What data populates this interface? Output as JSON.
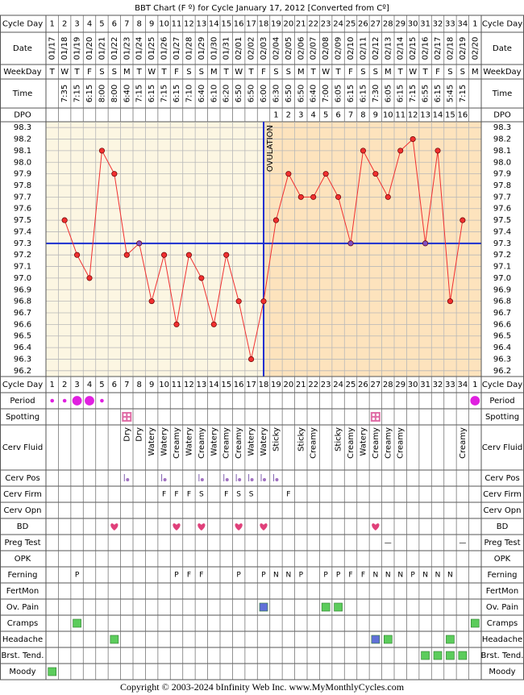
{
  "header": {
    "title": "BBT Chart (F º) for Cycle January 17, 2012  [Converted from Cº]"
  },
  "chart_data": {
    "type": "line",
    "categories": [
      1,
      2,
      3,
      4,
      5,
      6,
      7,
      8,
      9,
      10,
      11,
      12,
      13,
      14,
      15,
      16,
      17,
      18,
      19,
      20,
      21,
      22,
      23,
      24,
      25,
      26,
      27,
      28,
      29,
      30,
      31,
      32,
      33,
      34,
      1
    ],
    "dates": [
      "01/17",
      "01/18",
      "01/19",
      "01/20",
      "01/21",
      "01/22",
      "01/23",
      "01/24",
      "01/25",
      "01/26",
      "01/27",
      "01/28",
      "01/29",
      "01/30",
      "01/31",
      "02/01",
      "02/02",
      "02/03",
      "02/04",
      "02/05",
      "02/06",
      "02/07",
      "02/08",
      "02/09",
      "02/10",
      "02/11",
      "02/12",
      "02/13",
      "02/14",
      "02/15",
      "02/16",
      "02/17",
      "02/18",
      "02/19",
      "02/20"
    ],
    "weekdays": [
      "T",
      "W",
      "T",
      "F",
      "S",
      "S",
      "M",
      "T",
      "W",
      "T",
      "F",
      "S",
      "S",
      "M",
      "T",
      "W",
      "T",
      "F",
      "S",
      "S",
      "M",
      "T",
      "W",
      "T",
      "F",
      "S",
      "S",
      "M",
      "T",
      "W",
      "T",
      "F",
      "S",
      "S",
      "M"
    ],
    "times": [
      null,
      "7:35",
      "7:15",
      "6:15",
      "8:00",
      "8:00",
      "6:40",
      "7:15",
      "6:15",
      "7:15",
      "6:15",
      "7:10",
      "6:40",
      "6:10",
      "6:20",
      "6:50",
      "6:50",
      "6:00",
      "6:30",
      "6:50",
      "6:50",
      "6:40",
      "7:00",
      "6:05",
      "6:15",
      "6:15",
      "7:30",
      "6:05",
      "6:15",
      "7:15",
      "6:55",
      "6:15",
      "5:45",
      "7:15",
      null
    ],
    "dpo": [
      null,
      null,
      null,
      null,
      null,
      null,
      null,
      null,
      null,
      null,
      null,
      null,
      null,
      null,
      null,
      null,
      null,
      null,
      1,
      2,
      3,
      4,
      5,
      6,
      7,
      8,
      9,
      10,
      11,
      12,
      13,
      14,
      15,
      16,
      null
    ],
    "labels": {
      "cycle_day": "Cycle Day",
      "date": "Date",
      "weekday": "WeekDay",
      "time": "Time",
      "dpo": "DPO"
    },
    "series": [
      {
        "color": "#f03030",
        "values": [
          null,
          97.5,
          97.2,
          97.0,
          98.1,
          97.9,
          97.2,
          97.3,
          96.8,
          97.2,
          96.6,
          97.2,
          97.0,
          96.6,
          97.2,
          96.8,
          96.3,
          96.8,
          97.5,
          97.9,
          97.7,
          97.7,
          97.9,
          97.7,
          97.3,
          98.1,
          97.9,
          97.7,
          98.1,
          98.2,
          97.3,
          98.1,
          96.8,
          97.5,
          null
        ]
      }
    ],
    "ylim": [
      96.15,
      98.35
    ],
    "yticks": [
      98.3,
      98.2,
      98.1,
      {
        "value": 98,
        "label": "98.0"
      },
      97.9,
      97.8,
      97.7,
      97.6,
      97.5,
      97.4,
      97.3,
      97.2,
      97.1,
      {
        "value": 97,
        "label": "97.0"
      },
      96.9,
      96.8,
      96.7,
      96.6,
      96.5,
      96.4,
      96.3,
      96.2
    ],
    "grid": true,
    "coverline": 97.3,
    "coverline_color": "#1a2fd0",
    "ovulation_day": 18,
    "ovulation_label": "OVULATION"
  },
  "rows": [
    {
      "label": "Period",
      "kind": "flow",
      "cells": [
        1,
        1,
        3,
        3,
        1,
        null,
        null,
        null,
        null,
        null,
        null,
        null,
        null,
        null,
        null,
        null,
        null,
        null,
        null,
        null,
        null,
        null,
        null,
        null,
        null,
        null,
        null,
        null,
        null,
        null,
        null,
        null,
        null,
        null,
        3
      ]
    },
    {
      "label": "Spotting",
      "kind": "spot",
      "cells": [
        null,
        null,
        null,
        null,
        null,
        null,
        true,
        null,
        null,
        null,
        null,
        null,
        null,
        null,
        null,
        null,
        null,
        null,
        null,
        null,
        null,
        null,
        null,
        null,
        null,
        null,
        true,
        null,
        null,
        null,
        null,
        null,
        null,
        null,
        null
      ]
    },
    {
      "label": "Cerv Fluid",
      "kind": "vtext",
      "cells": [
        null,
        null,
        null,
        null,
        null,
        null,
        "Dry",
        "Dry",
        "Watery",
        "Watery",
        "Creamy",
        "Watery",
        "Creamy",
        "Watery",
        "Creamy",
        "Creamy",
        "Watery",
        "Watery",
        "Sticky",
        null,
        "Sticky",
        "Creamy",
        null,
        "Sticky",
        "Creamy",
        "Watery",
        "Creamy",
        "Creamy",
        "Creamy",
        null,
        null,
        null,
        null,
        "Creamy",
        null
      ]
    },
    {
      "label": "Cerv Pos",
      "kind": "pos",
      "cells": [
        null,
        null,
        null,
        null,
        null,
        null,
        true,
        null,
        null,
        true,
        null,
        null,
        true,
        null,
        true,
        true,
        true,
        true,
        true,
        null,
        null,
        null,
        null,
        null,
        null,
        null,
        null,
        null,
        null,
        null,
        null,
        null,
        null,
        null,
        null
      ]
    },
    {
      "label": "Cerv Firm",
      "kind": "text",
      "cells": [
        null,
        null,
        null,
        null,
        null,
        null,
        null,
        null,
        null,
        "F",
        "F",
        "F",
        "S",
        null,
        "F",
        "S",
        "S",
        null,
        null,
        "F",
        null,
        null,
        null,
        null,
        null,
        null,
        null,
        null,
        null,
        null,
        null,
        null,
        null,
        null,
        null
      ]
    },
    {
      "label": "Cerv Opn"
    },
    {
      "label": "BD",
      "kind": "heart",
      "cells": [
        null,
        null,
        null,
        null,
        null,
        true,
        null,
        null,
        null,
        null,
        true,
        null,
        true,
        null,
        null,
        true,
        null,
        true,
        null,
        null,
        null,
        null,
        null,
        null,
        null,
        null,
        true,
        null,
        null,
        null,
        null,
        null,
        null,
        null,
        null
      ]
    },
    {
      "label": "Preg Test",
      "kind": "text",
      "cells": [
        null,
        null,
        null,
        null,
        null,
        null,
        null,
        null,
        null,
        null,
        null,
        null,
        null,
        null,
        null,
        null,
        null,
        null,
        null,
        null,
        null,
        null,
        null,
        null,
        null,
        null,
        null,
        "—",
        null,
        null,
        null,
        null,
        null,
        "—",
        null
      ]
    },
    {
      "label": "OPK"
    },
    {
      "label": "Ferning",
      "kind": "text",
      "cells": [
        null,
        null,
        "P",
        null,
        null,
        null,
        null,
        null,
        null,
        null,
        "P",
        "F",
        "F",
        null,
        null,
        "P",
        null,
        "P",
        "N",
        "N",
        "P",
        null,
        "P",
        "P",
        "F",
        "F",
        "N",
        "N",
        "N",
        "P",
        "N",
        "N",
        "N",
        null,
        null
      ]
    },
    {
      "label": "FertMon"
    },
    {
      "label": "Ov. Pain",
      "kind": "box",
      "cells": [
        null,
        null,
        null,
        null,
        null,
        null,
        null,
        null,
        null,
        null,
        null,
        null,
        null,
        null,
        null,
        null,
        null,
        "#6070d8",
        null,
        null,
        null,
        null,
        "#5ccc5c",
        "#5ccc5c",
        null,
        null,
        null,
        null,
        null,
        null,
        null,
        null,
        null,
        null,
        null
      ]
    },
    {
      "label": "Cramps",
      "kind": "box",
      "cells": [
        null,
        null,
        "#5ccc5c",
        null,
        null,
        null,
        null,
        null,
        null,
        null,
        null,
        null,
        null,
        null,
        null,
        null,
        null,
        null,
        null,
        null,
        null,
        null,
        null,
        null,
        null,
        null,
        null,
        null,
        null,
        null,
        null,
        null,
        null,
        null,
        "#5ccc5c"
      ]
    },
    {
      "label": "Headache",
      "kind": "box",
      "cells": [
        null,
        null,
        null,
        null,
        null,
        "#5ccc5c",
        null,
        null,
        null,
        null,
        null,
        null,
        null,
        null,
        null,
        null,
        null,
        null,
        null,
        null,
        null,
        null,
        null,
        null,
        null,
        null,
        "#6070d8",
        "#5ccc5c",
        null,
        null,
        null,
        null,
        "#5ccc5c",
        null,
        null
      ]
    },
    {
      "label": "Brst. Tend.",
      "kind": "box",
      "cells": [
        null,
        null,
        null,
        null,
        null,
        null,
        null,
        null,
        null,
        null,
        null,
        null,
        null,
        null,
        null,
        null,
        null,
        null,
        null,
        null,
        null,
        null,
        null,
        null,
        null,
        null,
        null,
        null,
        null,
        null,
        "#5ccc5c",
        "#5ccc5c",
        "#5ccc5c",
        "#5ccc5c",
        null
      ]
    },
    {
      "label": "Moody",
      "kind": "box",
      "cells": [
        "#5ccc5c",
        null,
        null,
        null,
        null,
        null,
        null,
        null,
        null,
        null,
        null,
        null,
        null,
        null,
        null,
        null,
        null,
        null,
        null,
        null,
        null,
        null,
        null,
        null,
        null,
        null,
        null,
        null,
        null,
        null,
        null,
        null,
        null,
        null,
        null
      ]
    }
  ],
  "footer": "Copyright © 2003-2024 bInfinity Web Inc.    www.MyMonthlyCycles.com"
}
